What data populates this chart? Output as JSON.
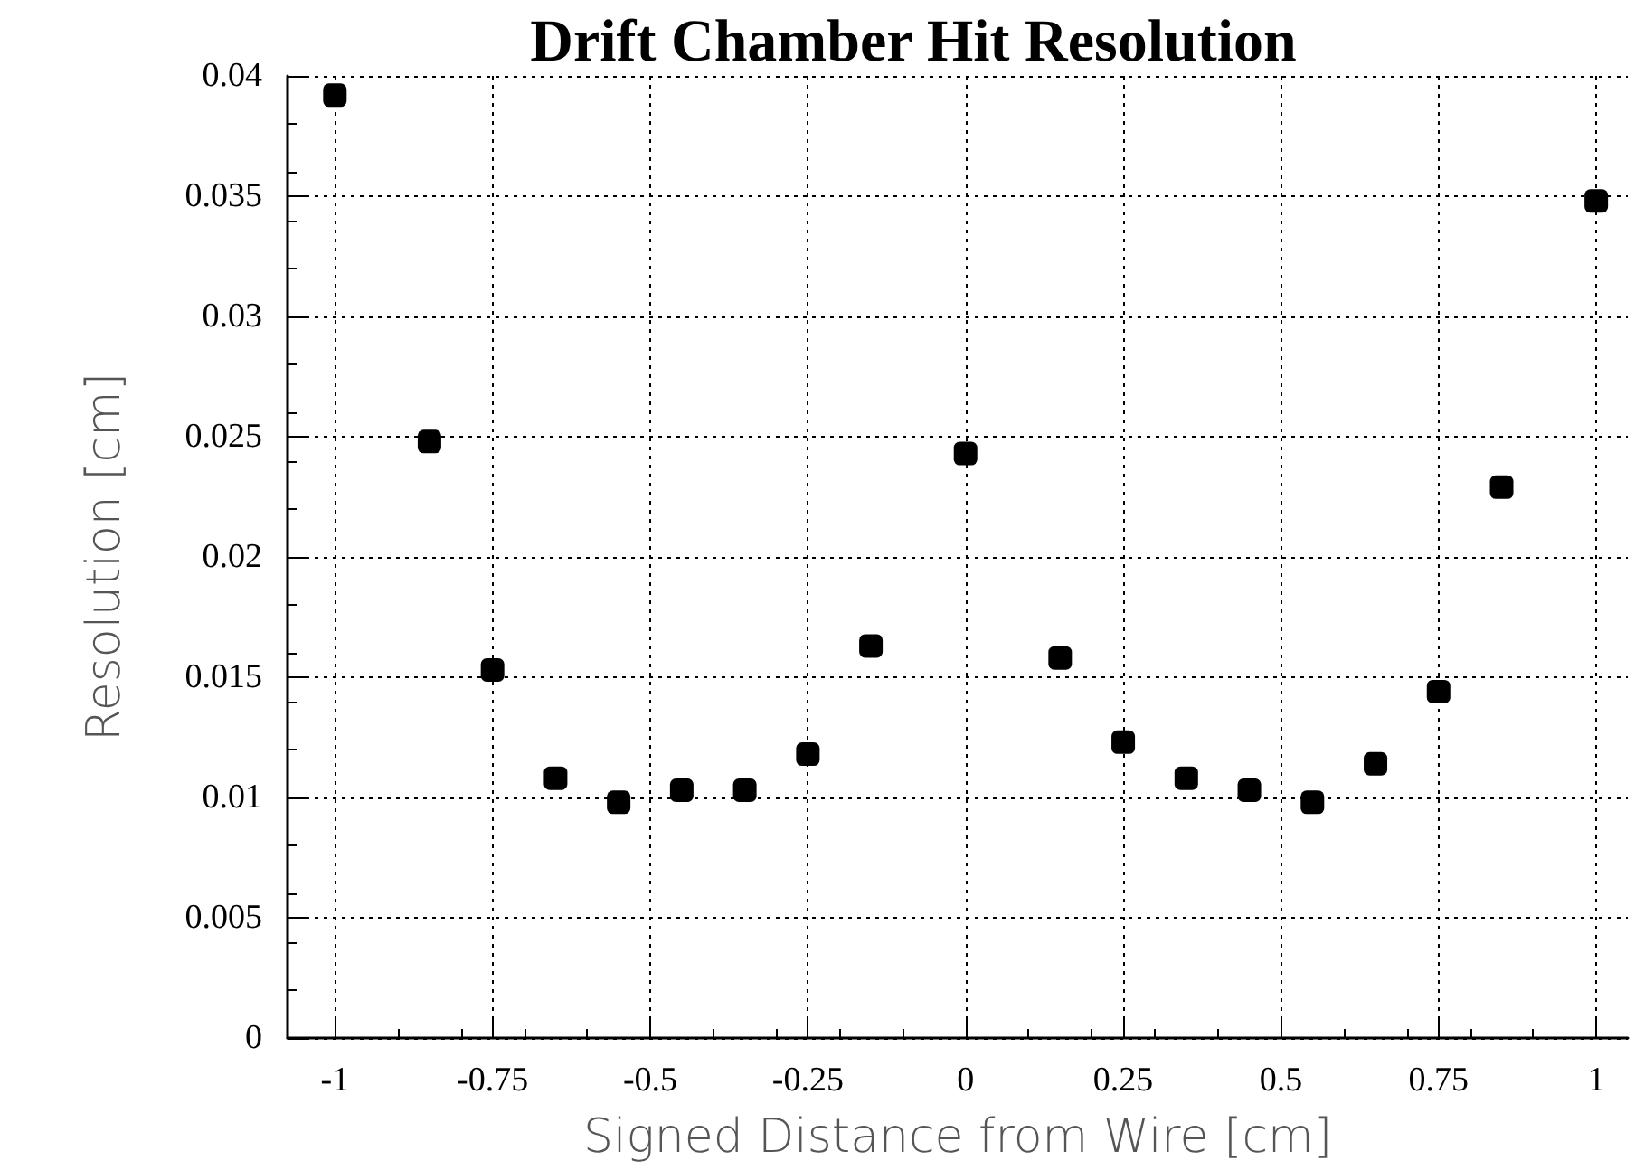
{
  "chart_data": {
    "type": "scatter",
    "title": "Drift Chamber Hit Resolution",
    "xlabel": "Signed Distance from Wire [cm]",
    "ylabel": "Resolution [cm]",
    "x": [
      -1,
      -0.85,
      -0.75,
      -0.65,
      -0.55,
      -0.45,
      -0.35,
      -0.25,
      -0.15,
      0,
      0.15,
      0.25,
      0.35,
      0.45,
      0.55,
      0.65,
      0.75,
      0.85,
      1
    ],
    "series": [
      {
        "color": "#000000",
        "values": [
          0.0392,
          0.0248,
          0.0153,
          0.0108,
          0.0098,
          0.0103,
          0.0103,
          0.0118,
          0.0163,
          0.0243,
          0.0158,
          0.0123,
          0.0108,
          0.0103,
          0.0098,
          0.0114,
          0.0144,
          0.0229,
          0.0348
        ]
      }
    ],
    "xlim": [
      -1.075,
      1.05
    ],
    "xticks": [
      -1,
      -0.75,
      -0.5,
      -0.25,
      0,
      0.25,
      0.5,
      0.75,
      1
    ],
    "ylim": [
      0,
      0.04
    ],
    "yticks": [
      0,
      0.005,
      0.01,
      0.015,
      0.02,
      0.025,
      0.03,
      0.035,
      0.04
    ],
    "grid": true,
    "marker": "square"
  }
}
